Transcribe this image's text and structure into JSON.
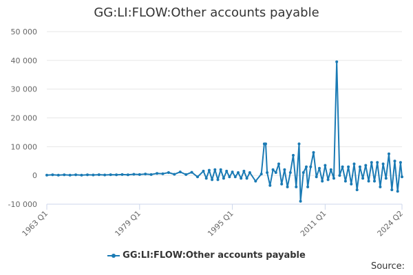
{
  "chart_data": {
    "type": "line",
    "title": "GG:LI:FLOW:Other accounts payable",
    "xlabel": "",
    "ylabel": "",
    "x_range": [
      "1963 Q1",
      "2024 Q2"
    ],
    "x_tick_labels": [
      "1963 Q1",
      "1979 Q1",
      "1995 Q1",
      "2011 Q1",
      "2024 Q2"
    ],
    "y_tick_labels": [
      "-10 000",
      "0",
      "10 000",
      "20 000",
      "30 000",
      "40 000",
      "50 000"
    ],
    "ylim": [
      -10000,
      50000
    ],
    "grid": true,
    "legend_position": "bottom",
    "series": [
      {
        "name": "GG:LI:FLOW:Other accounts payable",
        "color": "#1a7ab4",
        "points": [
          [
            "1963 Q1",
            100
          ],
          [
            "1964 Q1",
            200
          ],
          [
            "1965 Q1",
            100
          ],
          [
            "1966 Q1",
            200
          ],
          [
            "1967 Q1",
            100
          ],
          [
            "1968 Q1",
            200
          ],
          [
            "1969 Q1",
            100
          ],
          [
            "1970 Q1",
            200
          ],
          [
            "1971 Q1",
            150
          ],
          [
            "1972 Q1",
            250
          ],
          [
            "1973 Q1",
            150
          ],
          [
            "1974 Q1",
            250
          ],
          [
            "1975 Q1",
            200
          ],
          [
            "1976 Q1",
            300
          ],
          [
            "1977 Q1",
            200
          ],
          [
            "1978 Q1",
            400
          ],
          [
            "1979 Q1",
            300
          ],
          [
            "1980 Q1",
            500
          ],
          [
            "1981 Q1",
            300
          ],
          [
            "1982 Q1",
            700
          ],
          [
            "1983 Q1",
            600
          ],
          [
            "1984 Q1",
            1000
          ],
          [
            "1985 Q1",
            400
          ],
          [
            "1986 Q1",
            1200
          ],
          [
            "1987 Q1",
            300
          ],
          [
            "1988 Q1",
            1100
          ],
          [
            "1989 Q1",
            -500
          ],
          [
            "1990 Q1",
            1500
          ],
          [
            "1990 Q3",
            -1000
          ],
          [
            "1991 Q1",
            1800
          ],
          [
            "1991 Q3",
            -1500
          ],
          [
            "1992 Q1",
            2000
          ],
          [
            "1992 Q3",
            -1500
          ],
          [
            "1993 Q1",
            2000
          ],
          [
            "1993 Q3",
            -1000
          ],
          [
            "1994 Q1",
            1500
          ],
          [
            "1994 Q3",
            -500
          ],
          [
            "1995 Q1",
            1200
          ],
          [
            "1995 Q3",
            -500
          ],
          [
            "1996 Q1",
            1000
          ],
          [
            "1996 Q3",
            -1000
          ],
          [
            "1997 Q1",
            1500
          ],
          [
            "1997 Q3",
            -1000
          ],
          [
            "1998 Q1",
            1000
          ],
          [
            "1999 Q1",
            -2000
          ],
          [
            "2000 Q1",
            500
          ],
          [
            "2000 Q3",
            11000
          ],
          [
            "2000 Q4",
            11000
          ],
          [
            "2001 Q1",
            1000
          ],
          [
            "2001 Q3",
            -3500
          ],
          [
            "2002 Q1",
            2000
          ],
          [
            "2002 Q3",
            1000
          ],
          [
            "2003 Q1",
            4000
          ],
          [
            "2003 Q3",
            -3000
          ],
          [
            "2004 Q1",
            2000
          ],
          [
            "2004 Q3",
            -4000
          ],
          [
            "2005 Q1",
            1000
          ],
          [
            "2005 Q3",
            7000
          ],
          [
            "2006 Q1",
            -4000
          ],
          [
            "2006 Q3",
            11000
          ],
          [
            "2006 Q4",
            -9000
          ],
          [
            "2007 Q2",
            1000
          ],
          [
            "2007 Q4",
            3000
          ],
          [
            "2008 Q1",
            -4000
          ],
          [
            "2008 Q3",
            3000
          ],
          [
            "2009 Q1",
            8000
          ],
          [
            "2009 Q3",
            -500
          ],
          [
            "2010 Q1",
            2500
          ],
          [
            "2010 Q3",
            -2000
          ],
          [
            "2011 Q1",
            3500
          ],
          [
            "2011 Q3",
            -1500
          ],
          [
            "2012 Q1",
            2000
          ],
          [
            "2012 Q3",
            -1000
          ],
          [
            "2013 Q1",
            39500
          ],
          [
            "2013 Q3",
            0
          ],
          [
            "2014 Q1",
            3000
          ],
          [
            "2014 Q3",
            -2000
          ],
          [
            "2015 Q1",
            3000
          ],
          [
            "2015 Q3",
            -3000
          ],
          [
            "2016 Q1",
            4000
          ],
          [
            "2016 Q3",
            -5000
          ],
          [
            "2017 Q1",
            3000
          ],
          [
            "2017 Q3",
            -1000
          ],
          [
            "2018 Q1",
            3500
          ],
          [
            "2018 Q3",
            -2000
          ],
          [
            "2019 Q1",
            4500
          ],
          [
            "2019 Q3",
            -2000
          ],
          [
            "2020 Q1",
            4500
          ],
          [
            "2020 Q3",
            -4000
          ],
          [
            "2021 Q1",
            4000
          ],
          [
            "2021 Q3",
            -1000
          ],
          [
            "2022 Q1",
            7500
          ],
          [
            "2022 Q3",
            -5000
          ],
          [
            "2023 Q1",
            5000
          ],
          [
            "2023 Q3",
            -5500
          ],
          [
            "2024 Q1",
            4500
          ],
          [
            "2024 Q2",
            -500
          ]
        ]
      }
    ]
  },
  "source_label": "Source:"
}
